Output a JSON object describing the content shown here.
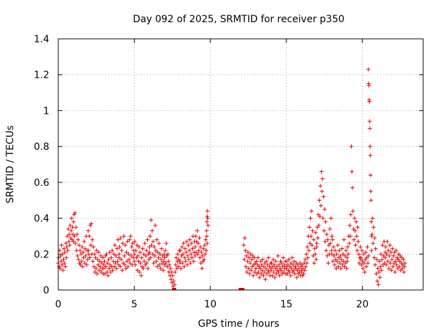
{
  "chart_data": {
    "type": "scatter",
    "title": "Day 092 of 2025, SRMTID for receiver p350",
    "xlabel": "GPS time / hours",
    "ylabel": "SRMTID / TECUs",
    "xlim": [
      0,
      24
    ],
    "ylim": [
      0,
      1.4
    ],
    "xticks": [
      0,
      5,
      10,
      15,
      20
    ],
    "xtick_labels": [
      "0",
      "5",
      "10",
      "15",
      "20"
    ],
    "yticks": [
      0,
      0.2,
      0.4,
      0.6,
      0.8,
      1.0,
      1.2,
      1.4
    ],
    "ytick_labels": [
      "0",
      "0.2",
      "0.4",
      "0.6",
      "0.8",
      "1",
      "1.2",
      "1.4"
    ],
    "grid": true,
    "marker": "+",
    "color": "#e00000",
    "series": [
      {
        "name": "SRMTID",
        "segments": [
          {
            "x_start": 0.0,
            "x_end": 1.0,
            "y": [
              0.15,
              0.18,
              0.13,
              0.22,
              0.12,
              0.19,
              0.16,
              0.25,
              0.14,
              0.2,
              0.11,
              0.17,
              0.23,
              0.15,
              0.21,
              0.13,
              0.26,
              0.18,
              0.24,
              0.3,
              0.22,
              0.34,
              0.27,
              0.31,
              0.25,
              0.36,
              0.29,
              0.33,
              0.4,
              0.28,
              0.35,
              0.31,
              0.27
            ]
          },
          {
            "x_start": 1.0,
            "x_end": 2.0,
            "y": [
              0.38,
              0.42,
              0.3,
              0.43,
              0.26,
              0.35,
              0.22,
              0.31,
              0.19,
              0.28,
              0.17,
              0.25,
              0.15,
              0.22,
              0.14,
              0.2,
              0.16,
              0.24,
              0.13,
              0.21,
              0.18,
              0.27,
              0.15,
              0.23,
              0.19,
              0.3,
              0.14,
              0.22,
              0.17,
              0.33,
              0.2
            ]
          },
          {
            "x_start": 2.0,
            "x_end": 3.0,
            "y": [
              0.22,
              0.3,
              0.18,
              0.36,
              0.25,
              0.37,
              0.2,
              0.28,
              0.16,
              0.24,
              0.13,
              0.2,
              0.1,
              0.18,
              0.12,
              0.22,
              0.09,
              0.17,
              0.14,
              0.21,
              0.11,
              0.16,
              0.13,
              0.19,
              0.1,
              0.15,
              0.12,
              0.18,
              0.09,
              0.14
            ]
          },
          {
            "x_start": 3.0,
            "x_end": 4.0,
            "y": [
              0.12,
              0.16,
              0.09,
              0.19,
              0.13,
              0.2,
              0.1,
              0.15,
              0.08,
              0.17,
              0.12,
              0.21,
              0.14,
              0.1,
              0.18,
              0.13,
              0.22,
              0.11,
              0.16,
              0.2,
              0.13,
              0.25,
              0.15,
              0.19,
              0.12,
              0.23,
              0.16,
              0.28,
              0.14,
              0.2
            ]
          },
          {
            "x_start": 4.0,
            "x_end": 5.0,
            "y": [
              0.18,
              0.24,
              0.13,
              0.29,
              0.17,
              0.22,
              0.11,
              0.26,
              0.15,
              0.3,
              0.19,
              0.14,
              0.25,
              0.12,
              0.21,
              0.16,
              0.27,
              0.13,
              0.2,
              0.17,
              0.28,
              0.15,
              0.3,
              0.19,
              0.24,
              0.14,
              0.26,
              0.18,
              0.22,
              0.16
            ]
          },
          {
            "x_start": 5.0,
            "x_end": 6.0,
            "y": [
              0.2,
              0.27,
              0.14,
              0.22,
              0.18,
              0.25,
              0.11,
              0.19,
              0.16,
              0.24,
              0.1,
              0.21,
              0.15,
              0.08,
              0.18,
              0.13,
              0.23,
              0.12,
              0.2,
              0.16,
              0.26,
              0.14,
              0.19,
              0.22,
              0.15,
              0.28,
              0.12,
              0.2,
              0.17,
              0.24
            ]
          },
          {
            "x_start": 6.0,
            "x_end": 7.0,
            "y": [
              0.21,
              0.3,
              0.18,
              0.39,
              0.25,
              0.33,
              0.2,
              0.27,
              0.15,
              0.24,
              0.19,
              0.36,
              0.22,
              0.16,
              0.28,
              0.13,
              0.21,
              0.18,
              0.26,
              0.14,
              0.2,
              0.12,
              0.17,
              0.23,
              0.15,
              0.19,
              0.11,
              0.16,
              0.2,
              0.14
            ]
          },
          {
            "x_start": 7.0,
            "x_end": 8.0,
            "y": [
              0.18,
              0.22,
              0.15,
              0.26,
              0.19,
              0.13,
              0.2,
              0.16,
              0.1,
              0.14,
              0.08,
              0.12,
              0.06,
              0.1,
              0.04,
              0.08,
              0.02,
              0.05,
              0.0,
              0.03,
              0.1,
              0.14,
              0.18,
              0.12,
              0.16,
              0.2,
              0.13,
              0.17,
              0.22,
              0.15
            ]
          },
          {
            "x_start": 8.0,
            "x_end": 9.0,
            "y": [
              0.16,
              0.22,
              0.12,
              0.19,
              0.24,
              0.15,
              0.2,
              0.26,
              0.13,
              0.18,
              0.23,
              0.16,
              0.21,
              0.27,
              0.14,
              0.19,
              0.25,
              0.17,
              0.22,
              0.28,
              0.15,
              0.2,
              0.26,
              0.18,
              0.23,
              0.3,
              0.16,
              0.21,
              0.27,
              0.19
            ]
          },
          {
            "x_start": 9.0,
            "x_end": 9.8,
            "y": [
              0.24,
              0.3,
              0.21,
              0.27,
              0.33,
              0.2,
              0.26,
              0.22,
              0.29,
              0.18,
              0.24,
              0.15,
              0.21,
              0.12,
              0.19,
              0.16,
              0.23,
              0.17,
              0.25,
              0.2,
              0.28,
              0.22,
              0.3,
              0.26
            ]
          },
          {
            "x_start": 9.75,
            "x_end": 9.85,
            "y": [
              0.33,
              0.38,
              0.41,
              0.44,
              0.4,
              0.36
            ]
          },
          {
            "x_start": 12.0,
            "x_end": 12.1,
            "y": [
              0.0,
              0.0,
              0.0
            ]
          },
          {
            "x_start": 12.2,
            "x_end": 13.0,
            "y": [
              0.25,
              0.17,
              0.29,
              0.22,
              0.13,
              0.19,
              0.1,
              0.16,
              0.21,
              0.12,
              0.18,
              0.09,
              0.15,
              0.2,
              0.11,
              0.17,
              0.13,
              0.19,
              0.08,
              0.14,
              0.18,
              0.1,
              0.15,
              0.12
            ]
          },
          {
            "x_start": 13.0,
            "x_end": 14.0,
            "y": [
              0.12,
              0.16,
              0.09,
              0.14,
              0.18,
              0.1,
              0.13,
              0.07,
              0.12,
              0.16,
              0.09,
              0.14,
              0.11,
              0.17,
              0.08,
              0.13,
              0.1,
              0.15,
              0.06,
              0.12,
              0.16,
              0.09,
              0.14,
              0.11,
              0.18,
              0.1,
              0.13,
              0.08,
              0.15,
              0.12
            ]
          },
          {
            "x_start": 14.0,
            "x_end": 15.0,
            "y": [
              0.11,
              0.15,
              0.08,
              0.13,
              0.17,
              0.1,
              0.14,
              0.07,
              0.12,
              0.16,
              0.09,
              0.13,
              0.11,
              0.19,
              0.1,
              0.14,
              0.08,
              0.12,
              0.16,
              0.11,
              0.15,
              0.09,
              0.13,
              0.18,
              0.1,
              0.14,
              0.12,
              0.16,
              0.09,
              0.13
            ]
          },
          {
            "x_start": 15.0,
            "x_end": 16.0,
            "y": [
              0.12,
              0.16,
              0.09,
              0.14,
              0.11,
              0.17,
              0.1,
              0.13,
              0.08,
              0.15,
              0.12,
              0.18,
              0.1,
              0.14,
              0.11,
              0.16,
              0.09,
              0.13,
              0.12,
              0.15,
              0.07,
              0.11,
              0.14,
              0.09,
              0.12,
              0.1,
              0.15,
              0.08,
              0.13,
              0.11
            ]
          },
          {
            "x_start": 16.0,
            "x_end": 17.0,
            "y": [
              0.1,
              0.14,
              0.08,
              0.12,
              0.09,
              0.15,
              0.11,
              0.17,
              0.13,
              0.2,
              0.15,
              0.24,
              0.18,
              0.3,
              0.22,
              0.35,
              0.26,
              0.4,
              0.3,
              0.44,
              0.25,
              0.33,
              0.19,
              0.28,
              0.15,
              0.23,
              0.2,
              0.32,
              0.17,
              0.26
            ]
          },
          {
            "x_start": 17.0,
            "x_end": 18.0,
            "y": [
              0.24,
              0.35,
              0.29,
              0.42,
              0.36,
              0.5,
              0.41,
              0.58,
              0.47,
              0.66,
              0.55,
              0.62,
              0.4,
              0.52,
              0.33,
              0.45,
              0.27,
              0.38,
              0.22,
              0.31,
              0.19,
              0.28,
              0.15,
              0.25,
              0.2,
              0.34,
              0.26,
              0.4,
              0.22,
              0.3
            ]
          },
          {
            "x_start": 18.0,
            "x_end": 19.0,
            "y": [
              0.2,
              0.28,
              0.16,
              0.24,
              0.19,
              0.14,
              0.22,
              0.17,
              0.12,
              0.2,
              0.16,
              0.25,
              0.13,
              0.18,
              0.22,
              0.15,
              0.19,
              0.12,
              0.17,
              0.23,
              0.14,
              0.2,
              0.16,
              0.28,
              0.13,
              0.19,
              0.15,
              0.22,
              0.12,
              0.18
            ]
          },
          {
            "x_start": 19.0,
            "x_end": 19.9,
            "y": [
              0.16,
              0.24,
              0.2,
              0.3,
              0.26,
              0.36,
              0.3,
              0.42,
              0.8,
              0.66,
              0.57,
              0.44,
              0.34,
              0.28,
              0.4,
              0.33,
              0.25,
              0.38,
              0.3,
              0.22,
              0.35,
              0.27,
              0.2,
              0.15,
              0.18,
              0.24,
              0.17
            ]
          },
          {
            "x_start": 19.9,
            "x_end": 20.4,
            "y": [
              0.18,
              0.14,
              0.22,
              0.16,
              0.12,
              0.2,
              0.15,
              0.1,
              0.17,
              0.21,
              0.13,
              0.18,
              0.24,
              0.15,
              0.19
            ]
          },
          {
            "x_start": 20.4,
            "x_end": 20.6,
            "y": [
              1.23,
              1.15,
              1.14,
              1.06,
              1.05,
              0.94,
              0.9,
              0.8,
              0.75,
              0.64,
              0.55,
              0.5,
              0.38,
              0.3
            ]
          },
          {
            "x_start": 20.6,
            "x_end": 21.5,
            "y": [
              0.22,
              0.31,
              0.4,
              0.26,
              0.35,
              0.18,
              0.29,
              0.14,
              0.23,
              0.09,
              0.17,
              0.05,
              0.12,
              0.03,
              0.1,
              0.16,
              0.07,
              0.13,
              0.2,
              0.11,
              0.17,
              0.25,
              0.14,
              0.19,
              0.27,
              0.15,
              0.21
            ]
          },
          {
            "x_start": 21.5,
            "x_end": 22.8,
            "y": [
              0.18,
              0.24,
              0.14,
              0.2,
              0.27,
              0.16,
              0.22,
              0.12,
              0.19,
              0.25,
              0.15,
              0.21,
              0.11,
              0.17,
              0.23,
              0.13,
              0.19,
              0.15,
              0.21,
              0.1,
              0.16,
              0.22,
              0.14,
              0.18,
              0.12,
              0.17,
              0.2,
              0.13,
              0.16,
              0.19,
              0.11,
              0.15,
              0.18,
              0.12,
              0.14,
              0.17,
              0.1,
              0.13,
              0.15
            ]
          }
        ]
      }
    ]
  }
}
